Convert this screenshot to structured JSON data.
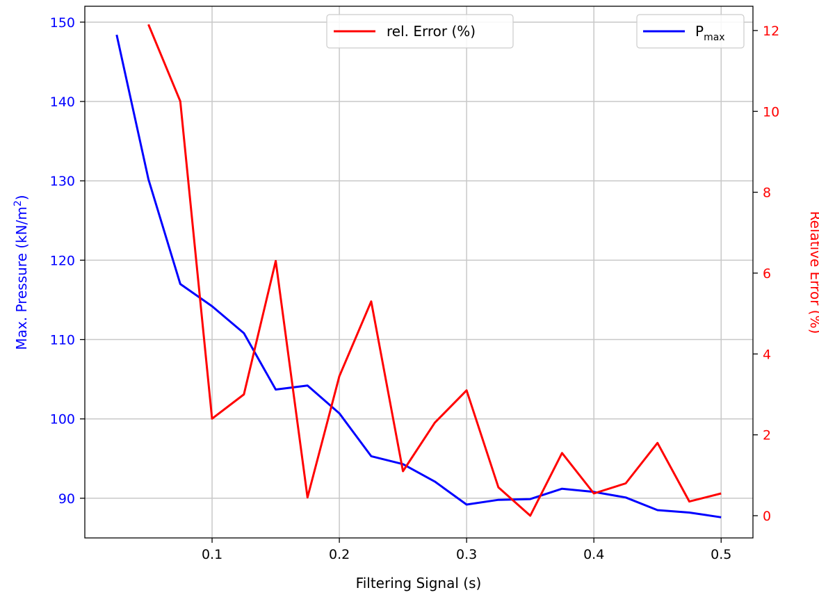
{
  "chart_data": {
    "type": "line",
    "xlabel": "Filtering Signal (s)",
    "ylabel_left": "Max. Pressure (kN/m²)",
    "ylabel_right": "Relative Error  (%)",
    "xlim": [
      0.0,
      0.525
    ],
    "ylim_left": [
      85.0,
      152.0
    ],
    "ylim_right": [
      -0.55,
      12.6
    ],
    "x_ticks": [
      0.1,
      0.2,
      0.3,
      0.4,
      0.5
    ],
    "x_tick_labels": [
      "0.1",
      "0.2",
      "0.3",
      "0.4",
      "0.5"
    ],
    "y_left_ticks": [
      90,
      100,
      110,
      120,
      130,
      140,
      150
    ],
    "y_left_tick_labels": [
      "90",
      "100",
      "110",
      "120",
      "130",
      "140",
      "150"
    ],
    "y_right_ticks": [
      0,
      2,
      4,
      6,
      8,
      10,
      12
    ],
    "y_right_tick_labels": [
      "0",
      "2",
      "4",
      "6",
      "8",
      "10",
      "12"
    ],
    "grid": true,
    "series": [
      {
        "name": "P_max",
        "axis": "left",
        "color": "#0000ff",
        "x": [
          0.025,
          0.05,
          0.075,
          0.1,
          0.125,
          0.15,
          0.175,
          0.2,
          0.225,
          0.25,
          0.275,
          0.3,
          0.325,
          0.35,
          0.375,
          0.4,
          0.425,
          0.45,
          0.475,
          0.5
        ],
        "y": [
          148.4,
          130.2,
          117.0,
          114.2,
          110.8,
          103.7,
          104.2,
          100.7,
          95.3,
          94.3,
          92.1,
          89.2,
          89.8,
          89.9,
          91.2,
          90.8,
          90.1,
          88.5,
          88.2,
          87.6
        ]
      },
      {
        "name": "rel. Error (%)",
        "axis": "right",
        "color": "#ff0000",
        "x": [
          0.05,
          0.075,
          0.1,
          0.125,
          0.15,
          0.175,
          0.2,
          0.225,
          0.25,
          0.275,
          0.3,
          0.325,
          0.35,
          0.375,
          0.4,
          0.425,
          0.45,
          0.475,
          0.5
        ],
        "y": [
          12.15,
          10.25,
          2.4,
          3.0,
          6.3,
          0.45,
          3.45,
          5.3,
          1.1,
          2.3,
          3.1,
          0.7,
          0.0,
          1.55,
          0.55,
          0.8,
          1.8,
          0.35,
          0.55
        ]
      }
    ],
    "legends": [
      {
        "position": "top-right",
        "label_main": "P",
        "label_sub": "max",
        "color": "#0000ff"
      },
      {
        "position": "upper-center",
        "label": "rel. Error (%)",
        "color": "#ff0000"
      }
    ]
  }
}
